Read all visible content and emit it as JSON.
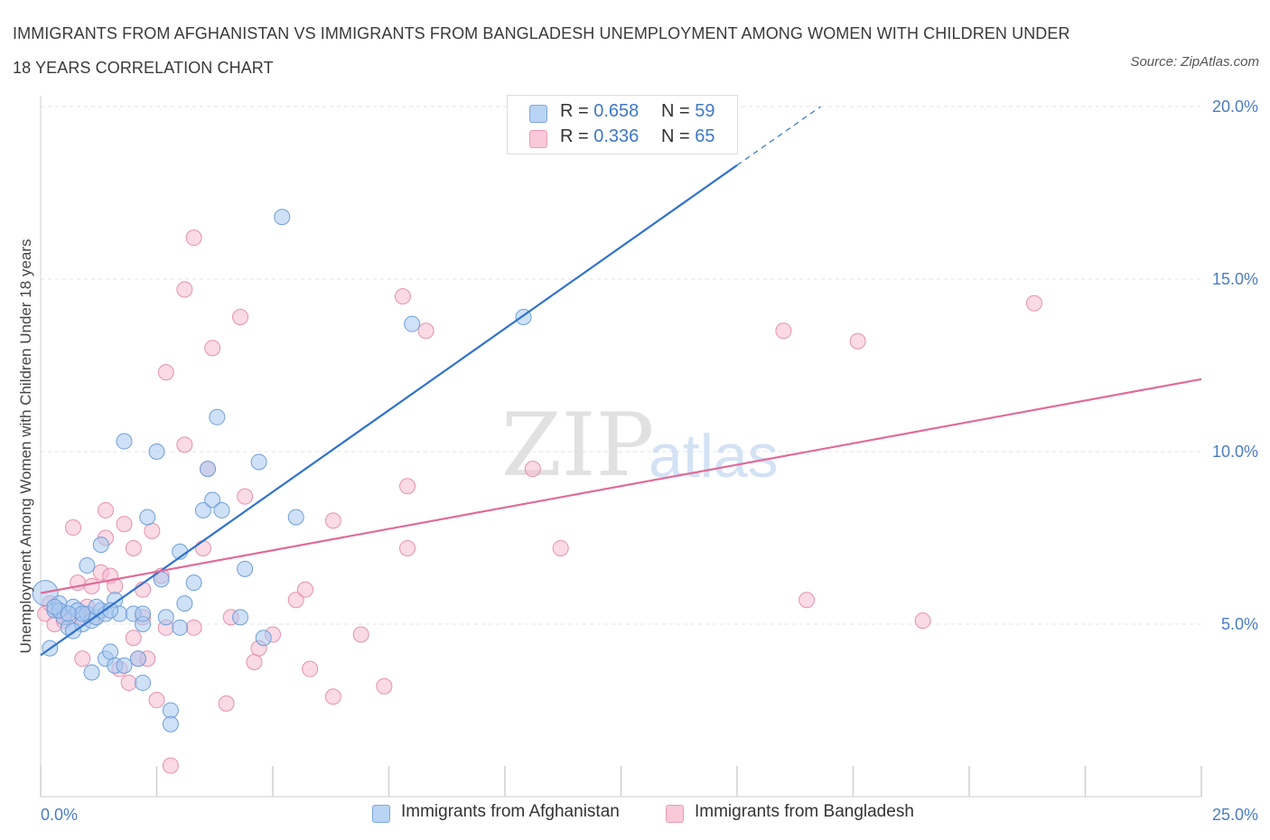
{
  "title": "IMMIGRANTS FROM AFGHANISTAN VS IMMIGRANTS FROM BANGLADESH UNEMPLOYMENT AMONG WOMEN WITH CHILDREN UNDER 18 YEARS CORRELATION CHART",
  "source": "Source: ZipAtlas.com",
  "watermark": {
    "zip": "ZIP",
    "atlas": "atlas"
  },
  "legend": {
    "afghanistan": {
      "r_label": "R = ",
      "r_value": "0.658",
      "n_label": "N = ",
      "n_value": "59"
    },
    "bangladesh": {
      "r_label": "R = ",
      "r_value": "0.336",
      "n_label": "N = ",
      "n_value": "65"
    }
  },
  "colors": {
    "afghanistan_fill": "#a8c8f0",
    "afghanistan_stroke": "#6f9fd8",
    "afghanistan_line": "#2f72cc",
    "bangladesh_fill": "#f6bcd0",
    "bangladesh_stroke": "#e690b0",
    "bangladesh_line": "#e06b98",
    "grid": "#e3e3e3",
    "tick_text": "#4a7cc4"
  },
  "chart_data": {
    "type": "scatter",
    "title": "IMMIGRANTS FROM AFGHANISTAN VS IMMIGRANTS FROM BANGLADESH UNEMPLOYMENT AMONG WOMEN WITH CHILDREN UNDER 18 YEARS CORRELATION CHART",
    "xlabel": "",
    "ylabel": "Unemployment Among Women with Children Under 18 years",
    "xlim": [
      0,
      25
    ],
    "ylim": [
      0,
      20
    ],
    "x_ticks": [
      {
        "value": 0,
        "label": "0.0%"
      },
      {
        "value": 25,
        "label": "25.0%"
      }
    ],
    "y_ticks": [
      {
        "value": 5,
        "label": "5.0%"
      },
      {
        "value": 10,
        "label": "10.0%"
      },
      {
        "value": 15,
        "label": "15.0%"
      },
      {
        "value": 20,
        "label": "20.0%"
      }
    ],
    "grid": true,
    "legend_placement": "bottom",
    "series": [
      {
        "name": "Immigrants from Afghanistan",
        "points": [
          [
            0.1,
            5.9
          ],
          [
            0.2,
            4.3
          ],
          [
            0.3,
            5.4
          ],
          [
            0.4,
            5.6
          ],
          [
            0.5,
            5.2
          ],
          [
            0.6,
            4.9
          ],
          [
            0.7,
            5.5
          ],
          [
            0.8,
            5.4
          ],
          [
            0.9,
            5.0
          ],
          [
            0.7,
            4.8
          ],
          [
            1.0,
            5.3
          ],
          [
            1.1,
            5.1
          ],
          [
            1.0,
            6.7
          ],
          [
            1.1,
            3.6
          ],
          [
            1.2,
            5.2
          ],
          [
            1.3,
            5.4
          ],
          [
            1.3,
            7.3
          ],
          [
            1.4,
            5.3
          ],
          [
            1.4,
            4.0
          ],
          [
            1.5,
            4.2
          ],
          [
            1.6,
            5.7
          ],
          [
            1.6,
            3.8
          ],
          [
            1.7,
            5.3
          ],
          [
            1.8,
            3.8
          ],
          [
            1.8,
            10.3
          ],
          [
            2.0,
            5.3
          ],
          [
            2.1,
            4.0
          ],
          [
            2.2,
            5.0
          ],
          [
            2.2,
            3.3
          ],
          [
            2.3,
            8.1
          ],
          [
            2.5,
            10.0
          ],
          [
            2.6,
            6.3
          ],
          [
            2.7,
            5.2
          ],
          [
            2.8,
            2.5
          ],
          [
            2.8,
            2.1
          ],
          [
            3.0,
            7.1
          ],
          [
            3.0,
            4.9
          ],
          [
            3.1,
            5.6
          ],
          [
            3.3,
            6.2
          ],
          [
            3.5,
            8.3
          ],
          [
            3.6,
            9.5
          ],
          [
            3.7,
            8.6
          ],
          [
            3.8,
            11.0
          ],
          [
            3.9,
            8.3
          ],
          [
            4.3,
            5.2
          ],
          [
            4.4,
            6.6
          ],
          [
            4.7,
            9.7
          ],
          [
            4.8,
            4.6
          ],
          [
            5.2,
            16.8
          ],
          [
            5.5,
            8.1
          ],
          [
            8.0,
            13.7
          ],
          [
            10.4,
            13.9
          ],
          [
            0.4,
            5.4
          ],
          [
            0.9,
            5.3
          ],
          [
            1.5,
            5.4
          ],
          [
            0.6,
            5.3
          ],
          [
            0.3,
            5.5
          ],
          [
            2.2,
            5.3
          ],
          [
            1.2,
            5.5
          ]
        ]
      },
      {
        "name": "Immigrants from Bangladesh",
        "points": [
          [
            0.1,
            5.3
          ],
          [
            0.2,
            5.6
          ],
          [
            0.3,
            5.0
          ],
          [
            0.4,
            5.4
          ],
          [
            0.5,
            5.1
          ],
          [
            0.6,
            5.2
          ],
          [
            0.7,
            7.8
          ],
          [
            0.8,
            6.2
          ],
          [
            0.9,
            4.0
          ],
          [
            1.0,
            5.5
          ],
          [
            1.1,
            6.1
          ],
          [
            1.2,
            5.2
          ],
          [
            1.3,
            6.5
          ],
          [
            1.4,
            7.5
          ],
          [
            1.4,
            8.3
          ],
          [
            1.5,
            6.4
          ],
          [
            1.6,
            6.1
          ],
          [
            1.7,
            3.7
          ],
          [
            1.8,
            7.9
          ],
          [
            1.9,
            3.3
          ],
          [
            2.0,
            4.6
          ],
          [
            2.0,
            7.2
          ],
          [
            2.1,
            4.0
          ],
          [
            2.2,
            6.0
          ],
          [
            2.3,
            4.0
          ],
          [
            2.4,
            7.7
          ],
          [
            2.5,
            2.8
          ],
          [
            2.6,
            6.4
          ],
          [
            2.7,
            4.9
          ],
          [
            2.7,
            12.3
          ],
          [
            2.8,
            0.9
          ],
          [
            3.1,
            14.7
          ],
          [
            3.1,
            10.2
          ],
          [
            3.3,
            4.9
          ],
          [
            3.3,
            16.2
          ],
          [
            3.5,
            7.2
          ],
          [
            3.6,
            9.5
          ],
          [
            3.7,
            13.0
          ],
          [
            4.0,
            2.7
          ],
          [
            4.1,
            5.2
          ],
          [
            4.3,
            13.9
          ],
          [
            4.4,
            8.7
          ],
          [
            4.6,
            3.9
          ],
          [
            4.7,
            4.3
          ],
          [
            5.0,
            4.7
          ],
          [
            5.5,
            5.7
          ],
          [
            5.7,
            6.0
          ],
          [
            5.8,
            3.7
          ],
          [
            6.3,
            8.0
          ],
          [
            6.3,
            2.9
          ],
          [
            6.9,
            4.7
          ],
          [
            7.4,
            3.2
          ],
          [
            7.8,
            14.5
          ],
          [
            7.9,
            7.2
          ],
          [
            7.9,
            9.0
          ],
          [
            8.3,
            13.5
          ],
          [
            10.6,
            9.5
          ],
          [
            11.2,
            7.2
          ],
          [
            16.0,
            13.5
          ],
          [
            16.5,
            5.7
          ],
          [
            17.6,
            13.2
          ],
          [
            19.0,
            5.1
          ],
          [
            21.4,
            14.3
          ],
          [
            0.9,
            5.2
          ],
          [
            2.2,
            5.2
          ]
        ]
      }
    ],
    "trend_lines": [
      {
        "series": "Immigrants from Afghanistan",
        "x0": 0,
        "y0": 4.1,
        "x1": 15.0,
        "y1": 18.3,
        "dashed_to_x": 16.8,
        "dashed_to_y": 20.0
      },
      {
        "series": "Immigrants from Bangladesh",
        "x0": 0,
        "y0": 5.9,
        "x1": 25.0,
        "y1": 12.1
      }
    ]
  },
  "bottom_legend": [
    "Immigrants from Afghanistan",
    "Immigrants from Bangladesh"
  ]
}
